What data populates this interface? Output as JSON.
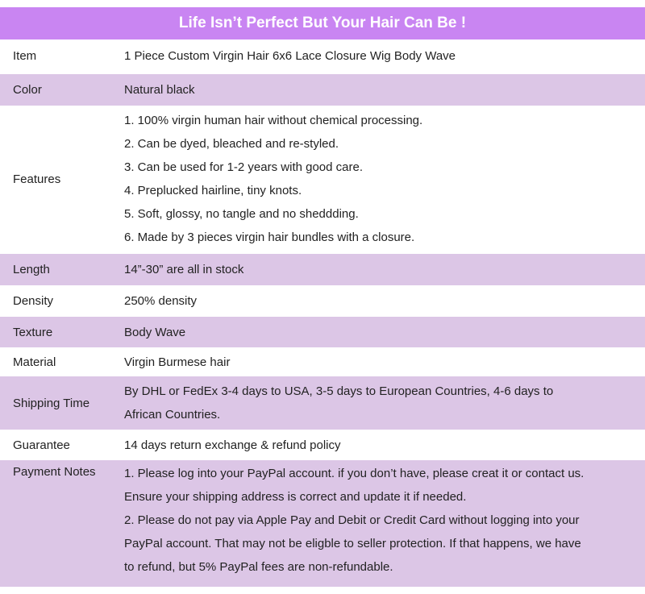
{
  "header": {
    "title": "Life Isn’t Perfect But Your Hair Can Be !"
  },
  "colors": {
    "header_bg": "#c985f2",
    "alt_row_bg": "#dcc6e6"
  },
  "rows": [
    {
      "label": "Item",
      "lines": [
        "1 Piece Custom Virgin Hair 6x6 Lace Closure Wig Body Wave"
      ]
    },
    {
      "label": "Color",
      "lines": [
        "Natural black"
      ]
    },
    {
      "label": "Features",
      "lines": [
        "1. 100% virgin human hair without chemical processing.",
        "2. Can be dyed, bleached and re-styled.",
        "3. Can be used for 1-2 years with good care.",
        "4. Preplucked hairline, tiny knots.",
        "5. Soft, glossy, no tangle and no sheddding.",
        "6. Made by 3 pieces virgin hair bundles with a closure."
      ]
    },
    {
      "label": "Length",
      "lines": [
        "14”-30” are all in stock"
      ]
    },
    {
      "label": "Density",
      "lines": [
        "250% density"
      ]
    },
    {
      "label": "Texture",
      "lines": [
        "Body Wave"
      ]
    },
    {
      "label": "Material",
      "lines": [
        "Virgin Burmese hair"
      ]
    },
    {
      "label": "Shipping Time",
      "lines": [
        "By DHL or FedEx 3-4 days to USA, 3-5 days to European Countries, 4-6 days to",
        "African Countries."
      ]
    },
    {
      "label": "Guarantee",
      "lines": [
        "14 days return exchange & refund policy"
      ]
    },
    {
      "label": "Payment Notes",
      "lines": [
        "1. Please log into your PayPal account. if you don’t have, please creat it or contact us.",
        "Ensure your shipping address is correct and update it if needed.",
        "2. Please do not pay via Apple Pay and Debit or Credit Card without logging into your",
        "PayPal account. That may not be eligble to seller protection. If that happens, we have",
        "to refund, but 5% PayPal fees are non-refundable."
      ]
    }
  ]
}
